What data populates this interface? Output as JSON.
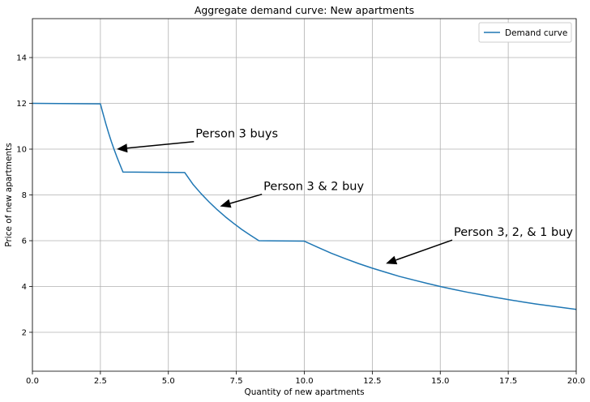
{
  "chart_data": {
    "type": "line",
    "title": "Aggregate demand curve: New apartments",
    "xlabel": "Quantity of new apartments",
    "ylabel": "Price of new apartments",
    "xlim": [
      0,
      20
    ],
    "ylim": [
      0.3,
      15.7
    ],
    "xticks": [
      0,
      2.5,
      5,
      7.5,
      10,
      12.5,
      15,
      17.5,
      20
    ],
    "xtick_labels": [
      "0.0",
      "2.5",
      "5.0",
      "7.5",
      "10.0",
      "12.5",
      "15.0",
      "17.5",
      "20.0"
    ],
    "yticks": [
      2,
      4,
      6,
      8,
      10,
      12,
      14
    ],
    "ytick_labels": [
      "2",
      "4",
      "6",
      "8",
      "10",
      "12",
      "14"
    ],
    "grid": true,
    "legend_position": "top-right",
    "series": [
      {
        "name": "Demand curve",
        "color": "#1f77b4",
        "x": [
          0,
          2.5,
          2.6,
          2.7,
          2.8,
          2.9,
          3.0,
          3.1,
          3.2,
          3.33,
          5.6,
          5.9,
          6.2,
          6.5,
          6.8,
          7.1,
          7.4,
          7.7,
          8.0,
          8.33,
          10.0,
          10.5,
          11,
          11.5,
          12,
          12.5,
          13,
          13.5,
          14,
          14.5,
          15,
          15.5,
          16,
          16.5,
          17,
          17.5,
          18,
          18.5,
          19,
          19.5,
          20
        ],
        "y": [
          12.0,
          11.98,
          11.54,
          11.11,
          10.71,
          10.34,
          10.0,
          9.68,
          9.38,
          9.0,
          8.98,
          8.47,
          8.06,
          7.69,
          7.35,
          7.04,
          6.76,
          6.49,
          6.25,
          6.0,
          5.98,
          5.71,
          5.45,
          5.22,
          5.0,
          4.8,
          4.62,
          4.44,
          4.29,
          4.14,
          4.0,
          3.87,
          3.75,
          3.64,
          3.53,
          3.43,
          3.33,
          3.24,
          3.16,
          3.08,
          3.0
        ]
      }
    ],
    "annotations": [
      {
        "text": "Person 3 buys",
        "xy": [
          3.1,
          10.0
        ],
        "xytext": [
          6.0,
          10.4
        ]
      },
      {
        "text": "Person 3 & 2 buy",
        "xy": [
          6.9,
          7.5
        ],
        "xytext": [
          8.5,
          8.1
        ]
      },
      {
        "text": "Person 3, 2, & 1 buy",
        "xy": [
          13.0,
          5.0
        ],
        "xytext": [
          15.5,
          6.1
        ]
      }
    ]
  }
}
